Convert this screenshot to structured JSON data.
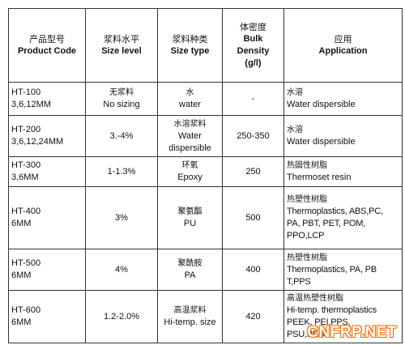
{
  "table": {
    "headers": [
      {
        "zh": "产品型号",
        "en": "Product Code"
      },
      {
        "zh": "浆料水平",
        "en": "Size level"
      },
      {
        "zh": "浆料种类",
        "en": "Size type"
      },
      {
        "zh": "体密度",
        "en1": "Bulk",
        "en2": "Density",
        "en3": "(g/l)"
      },
      {
        "zh": "应用",
        "en": "Application"
      }
    ],
    "rows": [
      {
        "code": "HT-100",
        "lengths": "3,6,12MM",
        "level_zh": "无浆料",
        "level_en": "No sizing",
        "type_zh": "水",
        "type_en": "water",
        "density": "-",
        "app_zh": "水溶",
        "app_en": [
          "Water dispersible"
        ]
      },
      {
        "code": "HT-200",
        "lengths": "3,6,12,24MM",
        "level_zh": "",
        "level_en": "3.-4%",
        "type_zh": "水溶浆料",
        "type_en": "Water dispersible",
        "density": "250-350",
        "app_zh": "水溶",
        "app_en": [
          "Water dispersible"
        ]
      },
      {
        "code": "HT-300",
        "lengths": "3,6MM",
        "level_zh": "",
        "level_en": "1-1.3%",
        "type_zh": "环氧",
        "type_en": "Epoxy",
        "density": "250",
        "app_zh": "热固性树脂",
        "app_en": [
          "Thermoset resin"
        ]
      },
      {
        "code": "HT-400",
        "lengths": "6MM",
        "level_zh": "",
        "level_en": "3%",
        "type_zh": "聚氨酯",
        "type_en": "PU",
        "density": "500",
        "app_zh": "热塑性树脂",
        "app_en": [
          "Thermoplastics,  ABS,PC,",
          "PA,   PBT,   PET,   POM,",
          "PPO,LCP"
        ]
      },
      {
        "code": "HT-500",
        "lengths": "6MM",
        "level_zh": "",
        "level_en": "4%",
        "type_zh": "聚酰胺",
        "type_en": "PA",
        "density": "400",
        "app_zh": "热塑性树脂",
        "app_en": [
          "Thermoplastics,  PA,  PB",
          "T,PPS"
        ]
      },
      {
        "code": "HT-600",
        "lengths": "6MM",
        "level_zh": "",
        "level_en": "1.2-2.0%",
        "type_zh": "高温浆料",
        "type_en": "Hi-temp. size",
        "density": "420",
        "app_zh": "高温热塑性树脂",
        "app_en": [
          "Hi-temp.   thermoplastics",
          "PEEK,               PEI,PPS,",
          "PSU,PES"
        ]
      }
    ]
  },
  "watermark": {
    "text": "CNFRP.NET",
    "color": "#ff6a00"
  }
}
